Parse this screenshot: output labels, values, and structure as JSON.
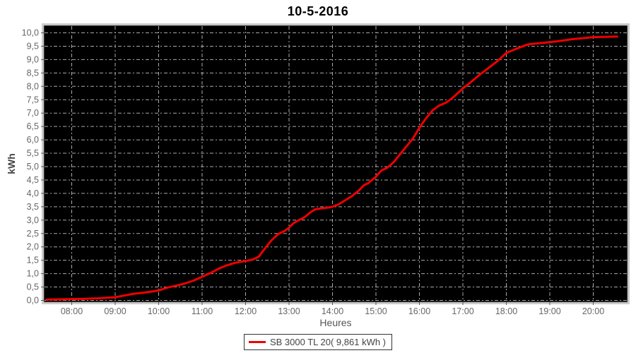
{
  "title": "10-5-2016",
  "axes": {
    "x_title": "Heures",
    "y_title": "kWh"
  },
  "legend": {
    "label": "SB 3000 TL 20( 9,861 kWh )"
  },
  "chart_data": {
    "type": "line",
    "title": "10-5-2016",
    "xlabel": "Heures",
    "ylabel": "kWh",
    "plot_background": "#000000",
    "grid_color": "#aaaaaa",
    "grid_style": "dash-dot",
    "line_color": "#ee0000",
    "tick_label_color": "#666666",
    "legend_position": "bottom-center",
    "x_ticks": [
      "08:00",
      "09:00",
      "10:00",
      "11:00",
      "12:00",
      "13:00",
      "14:00",
      "15:00",
      "16:00",
      "17:00",
      "18:00",
      "19:00",
      "20:00"
    ],
    "x_tick_hours": [
      8,
      9,
      10,
      11,
      12,
      13,
      14,
      15,
      16,
      17,
      18,
      19,
      20
    ],
    "y_ticks": [
      "0,0",
      "0,5",
      "1,0",
      "1,5",
      "2,0",
      "2,5",
      "3,0",
      "3,5",
      "4,0",
      "4,5",
      "5,0",
      "5,5",
      "6,0",
      "6,5",
      "7,0",
      "7,5",
      "8,0",
      "8,5",
      "9,0",
      "9,5",
      "10,0"
    ],
    "y_tick_values": [
      0,
      0.5,
      1,
      1.5,
      2,
      2.5,
      3,
      3.5,
      4,
      4.5,
      5,
      5.5,
      6,
      6.5,
      7,
      7.5,
      8,
      8.5,
      9,
      9.5,
      10
    ],
    "xlim_hours": [
      7.35,
      20.8
    ],
    "ylim": [
      0,
      10.3
    ],
    "grid": true,
    "series": [
      {
        "name": "SB 3000 TL 20( 9,861 kWh )",
        "total_kwh": "9,861",
        "points": [
          [
            7.42,
            0.03
          ],
          [
            7.7,
            0.04
          ],
          [
            8.0,
            0.05
          ],
          [
            8.3,
            0.06
          ],
          [
            8.6,
            0.08
          ],
          [
            8.8,
            0.1
          ],
          [
            9.0,
            0.12
          ],
          [
            9.2,
            0.18
          ],
          [
            9.4,
            0.24
          ],
          [
            9.6,
            0.28
          ],
          [
            9.8,
            0.32
          ],
          [
            10.0,
            0.37
          ],
          [
            10.2,
            0.48
          ],
          [
            10.4,
            0.55
          ],
          [
            10.6,
            0.63
          ],
          [
            10.8,
            0.74
          ],
          [
            11.0,
            0.88
          ],
          [
            11.2,
            1.03
          ],
          [
            11.4,
            1.2
          ],
          [
            11.55,
            1.3
          ],
          [
            11.75,
            1.4
          ],
          [
            11.95,
            1.46
          ],
          [
            12.15,
            1.52
          ],
          [
            12.3,
            1.63
          ],
          [
            12.45,
            1.95
          ],
          [
            12.6,
            2.25
          ],
          [
            12.75,
            2.48
          ],
          [
            12.9,
            2.6
          ],
          [
            13.0,
            2.72
          ],
          [
            13.1,
            2.88
          ],
          [
            13.2,
            2.98
          ],
          [
            13.35,
            3.1
          ],
          [
            13.5,
            3.3
          ],
          [
            13.6,
            3.4
          ],
          [
            13.75,
            3.44
          ],
          [
            13.9,
            3.47
          ],
          [
            14.0,
            3.5
          ],
          [
            14.15,
            3.6
          ],
          [
            14.3,
            3.75
          ],
          [
            14.45,
            3.9
          ],
          [
            14.6,
            4.1
          ],
          [
            14.72,
            4.3
          ],
          [
            14.82,
            4.38
          ],
          [
            15.0,
            4.62
          ],
          [
            15.12,
            4.85
          ],
          [
            15.25,
            4.95
          ],
          [
            15.4,
            5.15
          ],
          [
            15.55,
            5.45
          ],
          [
            15.7,
            5.75
          ],
          [
            15.85,
            6.05
          ],
          [
            16.0,
            6.45
          ],
          [
            16.15,
            6.8
          ],
          [
            16.3,
            7.1
          ],
          [
            16.45,
            7.28
          ],
          [
            16.6,
            7.38
          ],
          [
            16.75,
            7.55
          ],
          [
            17.0,
            7.92
          ],
          [
            17.2,
            8.18
          ],
          [
            17.4,
            8.45
          ],
          [
            17.6,
            8.7
          ],
          [
            17.8,
            8.95
          ],
          [
            18.0,
            9.25
          ],
          [
            18.15,
            9.35
          ],
          [
            18.3,
            9.45
          ],
          [
            18.5,
            9.57
          ],
          [
            18.75,
            9.61
          ],
          [
            19.0,
            9.65
          ],
          [
            19.25,
            9.7
          ],
          [
            19.5,
            9.76
          ],
          [
            19.75,
            9.8
          ],
          [
            20.0,
            9.84
          ],
          [
            20.25,
            9.85
          ],
          [
            20.55,
            9.861
          ]
        ]
      }
    ]
  }
}
